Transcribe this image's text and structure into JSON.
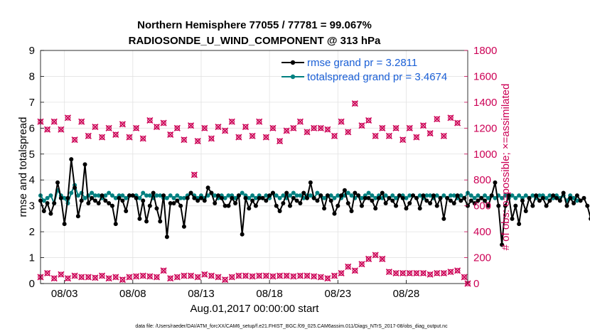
{
  "title_line1": "Northern Hemisphere 77055 / 77781 = 99.067%",
  "title_line2": "RADIOSONDE_U_WIND_COMPONENT @ 313 hPa",
  "xlabel": "Aug.01,2017 00:00:00 start",
  "ylabel_left": "rmse and totalspread",
  "ylabel_right": "# of obs: o=possible; ×=assimilated",
  "footer": "data file: /Users/raeder/DAI/ATM_forcXX/CAM6_setup/f.e21.FHIST_BGC.f09_025.CAM6assim.011/Diags_NTrS_2017-08/obs_diag_output.nc",
  "colors": {
    "rmse": "#000000",
    "spread": "#008080",
    "obs": "#cc0055",
    "legend_text": "#1a5fd6"
  },
  "chart_data": {
    "type": "line",
    "x_unit": "days since Aug.01,2017 00:00",
    "xlim": [
      0.25,
      31.5
    ],
    "ylim_left": [
      0,
      9
    ],
    "ylim_right": [
      0,
      1800
    ],
    "yticks_left": [
      "0",
      "1",
      "2",
      "3",
      "4",
      "5",
      "6",
      "7",
      "8",
      "9"
    ],
    "yticks_right": [
      "0",
      "200",
      "400",
      "600",
      "800",
      "1000",
      "1200",
      "1400",
      "1600",
      "1800"
    ],
    "xticks": [
      {
        "x": 2.0,
        "label": "08/03"
      },
      {
        "x": 7.0,
        "label": "08/08"
      },
      {
        "x": 12.0,
        "label": "08/13"
      },
      {
        "x": 17.0,
        "label": "08/18"
      },
      {
        "x": 22.0,
        "label": "08/23"
      },
      {
        "x": 27.0,
        "label": "08/28"
      }
    ],
    "x_start": 0.25,
    "x_step": 0.25,
    "series": [
      {
        "name": "rmse grand pr = 3.2811",
        "values": [
          3.2,
          2.8,
          3.1,
          2.7,
          3.1,
          3.9,
          3.3,
          2.3,
          3.3,
          4.8,
          3.7,
          2.6,
          3.2,
          4.6,
          3.1,
          3.3,
          3.2,
          3.1,
          3.4,
          3.2,
          3.1,
          3.0,
          2.3,
          3.3,
          3.2,
          2.8,
          3.4,
          3.4,
          3.3,
          2.5,
          3.2,
          2.4,
          3.0,
          3.5,
          2.9,
          2.4,
          3.4,
          1.8,
          3.1,
          3.1,
          3.2,
          3.0,
          2.2,
          3.3,
          3.5,
          3.3,
          3.2,
          3.3,
          3.2,
          3.7,
          3.5,
          3.1,
          3.4,
          3.3,
          3.0,
          3.0,
          3.3,
          3.1,
          3.4,
          1.9,
          3.3,
          2.9,
          3.2,
          3.0,
          3.3,
          3.3,
          3.2,
          3.4,
          3.5,
          3.0,
          2.8,
          3.1,
          3.5,
          3.0,
          3.3,
          3.2,
          3.1,
          3.5,
          3.3,
          3.9,
          3.3,
          3.2,
          3.4,
          2.9,
          3.4,
          3.2,
          2.7,
          3.0,
          3.4,
          3.6,
          3.1,
          2.8,
          3.5,
          3.4,
          3.0,
          3.3,
          3.3,
          3.2,
          2.9,
          3.3,
          3.5,
          3.1,
          3.3,
          3.2,
          3.0,
          3.4,
          3.3,
          2.9,
          3.1,
          3.4,
          3.3,
          2.9,
          3.4,
          3.2,
          3.1,
          3.4,
          3.0,
          3.3,
          2.5,
          3.3,
          3.2,
          3.1,
          3.4,
          3.2,
          3.3,
          3.0,
          3.2,
          3.1,
          3.2,
          3.3,
          3.2,
          3.0,
          3.4,
          3.9,
          3.0,
          1.5,
          3.0,
          3.4,
          2.5,
          3.0,
          2.3,
          3.2,
          2.8,
          3.3,
          3.0,
          3.4,
          3.2,
          3.3,
          3.0,
          3.2,
          3.4,
          3.3,
          3.2,
          3.5,
          3.0,
          3.3,
          3.1,
          3.4,
          3.2,
          3.3,
          3.0,
          2.5
        ]
      },
      {
        "name": "totalspread grand pr = 3.4674",
        "values": [
          3.4,
          3.2,
          3.3,
          3.4,
          3.1,
          3.6,
          3.4,
          3.3,
          3.1,
          3.5,
          3.8,
          3.4,
          3.5,
          3.3,
          3.4,
          3.5,
          3.4,
          3.4,
          3.3,
          3.4,
          3.5,
          3.4,
          3.3,
          3.4,
          3.4,
          3.3,
          3.4,
          3.4,
          3.4,
          3.3,
          3.5,
          3.4,
          3.4,
          3.3,
          3.4,
          3.4,
          3.3,
          3.3,
          3.4,
          3.3,
          3.4,
          3.3,
          3.3,
          3.4,
          3.5,
          3.4,
          3.3,
          3.4,
          3.3,
          3.4,
          3.5,
          3.4,
          3.3,
          3.4,
          3.3,
          3.4,
          3.4,
          3.3,
          3.4,
          3.5,
          3.4,
          3.3,
          3.4,
          3.3,
          3.4,
          3.3,
          3.4,
          3.3,
          3.5,
          3.4,
          3.3,
          3.4,
          3.3,
          3.4,
          3.5,
          3.4,
          3.4,
          3.3,
          3.4,
          3.4,
          3.3,
          3.5,
          3.4,
          3.3,
          3.4,
          3.4,
          3.3,
          3.4,
          3.3,
          3.4,
          3.5,
          3.4,
          3.3,
          3.4,
          3.3,
          3.4,
          3.5,
          3.4,
          3.3,
          3.4,
          3.3,
          3.4,
          3.3,
          3.4,
          3.3,
          3.4,
          3.4,
          3.3,
          3.4,
          3.4,
          3.3,
          3.4,
          3.3,
          3.4,
          3.4,
          3.3,
          3.4,
          3.3,
          3.4,
          3.3,
          3.4,
          3.4,
          3.3,
          3.4,
          3.3,
          3.5,
          3.4,
          3.3,
          3.4,
          3.3,
          3.4,
          3.3,
          3.4,
          3.3,
          3.4,
          3.3,
          3.4,
          3.3,
          3.4,
          3.3,
          3.4,
          3.3,
          3.4,
          3.3,
          3.4,
          3.3,
          3.4,
          3.4,
          3.3,
          3.4,
          3.3,
          3.4,
          3.3,
          3.4,
          3.2,
          3.4,
          3.3,
          3.2
        ]
      }
    ],
    "obs_possible_high": [
      {
        "x": 0.25,
        "y": 1250
      },
      {
        "x": 0.75,
        "y": 1190
      },
      {
        "x": 1.25,
        "y": 1250
      },
      {
        "x": 1.75,
        "y": 1190
      },
      {
        "x": 2.25,
        "y": 1280
      },
      {
        "x": 2.75,
        "y": 1110
      },
      {
        "x": 3.25,
        "y": 1250
      },
      {
        "x": 3.75,
        "y": 1140
      },
      {
        "x": 4.25,
        "y": 1210
      },
      {
        "x": 4.75,
        "y": 1130
      },
      {
        "x": 5.25,
        "y": 1200
      },
      {
        "x": 5.75,
        "y": 1150
      },
      {
        "x": 6.25,
        "y": 1230
      },
      {
        "x": 6.75,
        "y": 1130
      },
      {
        "x": 7.25,
        "y": 1200
      },
      {
        "x": 7.75,
        "y": 1120
      },
      {
        "x": 8.25,
        "y": 1260
      },
      {
        "x": 8.75,
        "y": 1210
      },
      {
        "x": 9.25,
        "y": 1240
      },
      {
        "x": 9.75,
        "y": 1150
      },
      {
        "x": 10.25,
        "y": 1200
      },
      {
        "x": 10.75,
        "y": 1110
      },
      {
        "x": 11.25,
        "y": 1220
      },
      {
        "x": 11.75,
        "y": 1100
      },
      {
        "x": 12.25,
        "y": 1200
      },
      {
        "x": 12.75,
        "y": 1120
      },
      {
        "x": 13.25,
        "y": 1210
      },
      {
        "x": 13.75,
        "y": 1180
      },
      {
        "x": 14.25,
        "y": 1250
      },
      {
        "x": 14.75,
        "y": 1130
      },
      {
        "x": 15.25,
        "y": 1210
      },
      {
        "x": 15.75,
        "y": 1140
      },
      {
        "x": 16.25,
        "y": 1250
      },
      {
        "x": 16.75,
        "y": 1130
      },
      {
        "x": 17.25,
        "y": 1200
      },
      {
        "x": 17.75,
        "y": 1100
      },
      {
        "x": 18.25,
        "y": 1180
      },
      {
        "x": 18.75,
        "y": 1200
      },
      {
        "x": 19.25,
        "y": 1250
      },
      {
        "x": 19.75,
        "y": 1170
      },
      {
        "x": 20.25,
        "y": 1200
      },
      {
        "x": 20.75,
        "y": 1200
      },
      {
        "x": 21.25,
        "y": 1190
      },
      {
        "x": 21.75,
        "y": 1140
      },
      {
        "x": 22.25,
        "y": 1250
      },
      {
        "x": 22.75,
        "y": 1170
      },
      {
        "x": 23.25,
        "y": 1390
      },
      {
        "x": 23.75,
        "y": 1220
      },
      {
        "x": 24.25,
        "y": 1260
      },
      {
        "x": 24.75,
        "y": 1140
      },
      {
        "x": 25.25,
        "y": 1200
      },
      {
        "x": 25.75,
        "y": 1140
      },
      {
        "x": 26.25,
        "y": 1200
      },
      {
        "x": 26.75,
        "y": 1110
      },
      {
        "x": 27.25,
        "y": 1200
      },
      {
        "x": 27.75,
        "y": 1130
      },
      {
        "x": 28.25,
        "y": 1220
      },
      {
        "x": 28.75,
        "y": 1160
      },
      {
        "x": 29.25,
        "y": 1270
      },
      {
        "x": 29.75,
        "y": 1140
      },
      {
        "x": 30.25,
        "y": 1280
      },
      {
        "x": 30.75,
        "y": 1240
      }
    ],
    "obs_possible_low": [
      {
        "x": 0.25,
        "y": 50
      },
      {
        "x": 0.75,
        "y": 80
      },
      {
        "x": 1.25,
        "y": 40
      },
      {
        "x": 1.75,
        "y": 70
      },
      {
        "x": 2.25,
        "y": 40
      },
      {
        "x": 2.75,
        "y": 60
      },
      {
        "x": 3.25,
        "y": 50
      },
      {
        "x": 3.75,
        "y": 50
      },
      {
        "x": 4.25,
        "y": 45
      },
      {
        "x": 4.75,
        "y": 60
      },
      {
        "x": 5.25,
        "y": 40
      },
      {
        "x": 5.75,
        "y": 50
      },
      {
        "x": 6.25,
        "y": 30
      },
      {
        "x": 6.75,
        "y": 50
      },
      {
        "x": 7.25,
        "y": 55
      },
      {
        "x": 7.75,
        "y": 60
      },
      {
        "x": 8.25,
        "y": 55
      },
      {
        "x": 8.75,
        "y": 50
      },
      {
        "x": 9.25,
        "y": 100
      },
      {
        "x": 9.75,
        "y": 40
      },
      {
        "x": 10.25,
        "y": 50
      },
      {
        "x": 10.75,
        "y": 60
      },
      {
        "x": 11.25,
        "y": 60
      },
      {
        "x": 11.75,
        "y": 50
      },
      {
        "x": 12.25,
        "y": 70
      },
      {
        "x": 12.75,
        "y": 60
      },
      {
        "x": 13.25,
        "y": 50
      },
      {
        "x": 13.75,
        "y": 30
      },
      {
        "x": 14.25,
        "y": 50
      },
      {
        "x": 14.75,
        "y": 60
      },
      {
        "x": 15.25,
        "y": 60
      },
      {
        "x": 15.75,
        "y": 55
      },
      {
        "x": 16.25,
        "y": 60
      },
      {
        "x": 16.75,
        "y": 60
      },
      {
        "x": 17.25,
        "y": 55
      },
      {
        "x": 17.75,
        "y": 60
      },
      {
        "x": 18.25,
        "y": 60
      },
      {
        "x": 18.75,
        "y": 55
      },
      {
        "x": 19.25,
        "y": 60
      },
      {
        "x": 19.75,
        "y": 60
      },
      {
        "x": 20.25,
        "y": 55
      },
      {
        "x": 20.75,
        "y": 50
      },
      {
        "x": 21.25,
        "y": 40
      },
      {
        "x": 21.75,
        "y": 60
      },
      {
        "x": 22.25,
        "y": 80
      },
      {
        "x": 22.75,
        "y": 130
      },
      {
        "x": 23.25,
        "y": 100
      },
      {
        "x": 23.75,
        "y": 150
      },
      {
        "x": 24.25,
        "y": 190
      },
      {
        "x": 24.75,
        "y": 220
      },
      {
        "x": 25.25,
        "y": 190
      },
      {
        "x": 25.75,
        "y": 90
      },
      {
        "x": 26.25,
        "y": 80
      },
      {
        "x": 26.75,
        "y": 80
      },
      {
        "x": 27.25,
        "y": 80
      },
      {
        "x": 27.75,
        "y": 80
      },
      {
        "x": 28.25,
        "y": 80
      },
      {
        "x": 28.75,
        "y": 70
      },
      {
        "x": 29.25,
        "y": 80
      },
      {
        "x": 29.75,
        "y": 80
      },
      {
        "x": 30.25,
        "y": 90
      },
      {
        "x": 30.75,
        "y": 100
      },
      {
        "x": 31.25,
        "y": 50
      },
      {
        "x": 31.5,
        "y": 0
      }
    ],
    "obs_mid": [
      {
        "x": 11.5,
        "y": 840
      }
    ],
    "legend": "top-right"
  }
}
